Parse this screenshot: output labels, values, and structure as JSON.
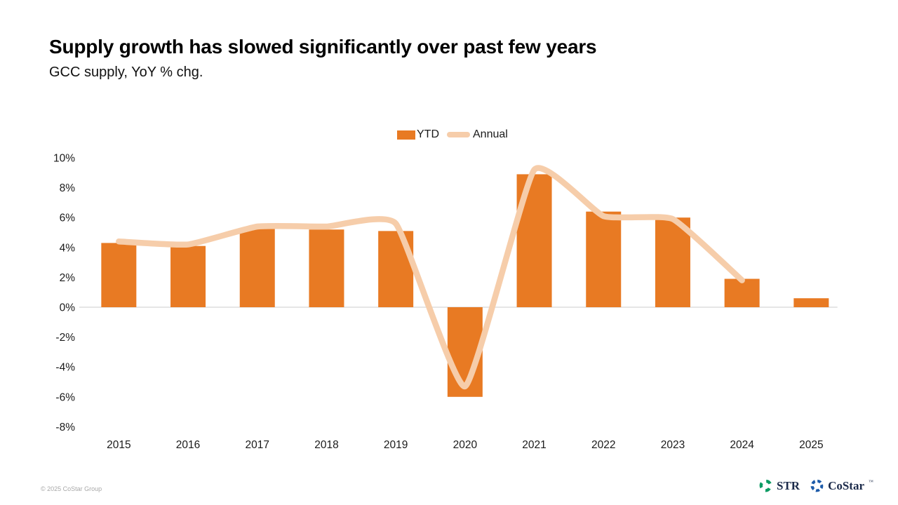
{
  "header": {
    "title": "Supply growth has slowed significantly over past few years",
    "subtitle": "GCC supply, YoY % chg."
  },
  "legend": {
    "ytd_label": "YTD",
    "annual_label": "Annual"
  },
  "chart_data": {
    "type": "bar",
    "title": "GCC supply, YoY % chg.",
    "categories": [
      "2015",
      "2016",
      "2017",
      "2018",
      "2019",
      "2020",
      "2021",
      "2022",
      "2023",
      "2024",
      "2025"
    ],
    "series": [
      {
        "name": "YTD",
        "type": "bar",
        "values": [
          4.3,
          4.1,
          5.3,
          5.2,
          5.1,
          -6.0,
          8.9,
          6.4,
          6.0,
          1.9,
          0.6
        ]
      },
      {
        "name": "Annual",
        "type": "line",
        "values": [
          4.4,
          4.2,
          5.4,
          5.4,
          5.6,
          -5.3,
          9.2,
          6.1,
          5.9,
          1.8,
          null
        ]
      }
    ],
    "xlabel": "",
    "ylabel": "",
    "ylim": [
      -8,
      10
    ],
    "ytick_step": 2,
    "ytick_format": "percent",
    "grid": "zero-line-only",
    "legend_position": "top-center"
  },
  "colors": {
    "bar": "#E87A23",
    "line": "#F6CDAA",
    "zero_line": "#D8D8D8",
    "axis_text": "#1a1a1a",
    "logo_str": "#0C9B63",
    "logo_costar": "#1D5BA9"
  },
  "footer": {
    "copyright": "© 2025 CoStar Group",
    "logos": [
      {
        "name": "STR",
        "tm": ""
      },
      {
        "name": "CoStar",
        "tm": "™"
      }
    ]
  }
}
